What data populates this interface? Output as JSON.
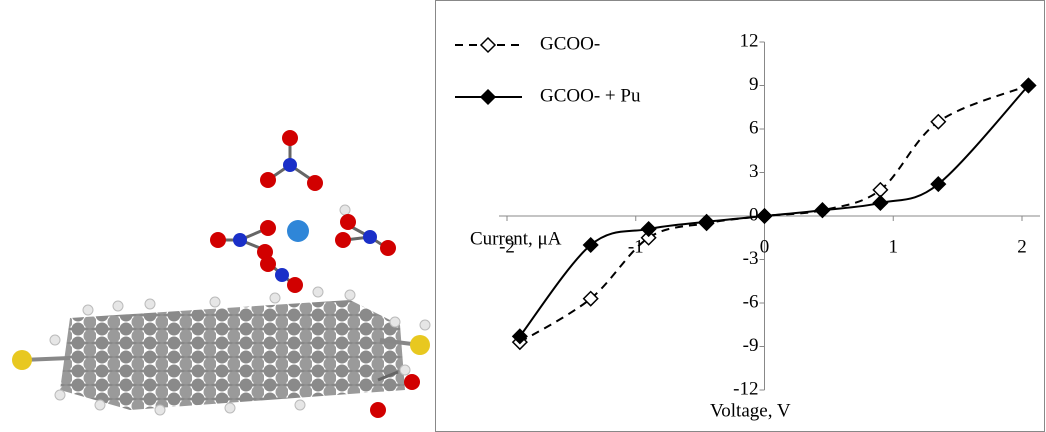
{
  "chart_data": {
    "type": "line",
    "x_label": "Voltage, V",
    "y_label": "Current, μA",
    "x": [
      -1.9,
      -1.35,
      -0.9,
      -0.45,
      0,
      0.45,
      0.9,
      1.35,
      2.05
    ],
    "series": [
      {
        "name": "GCOO-",
        "color": "#000000",
        "dashed": true,
        "marker": "open-diamond",
        "values": [
          -8.7,
          -5.7,
          -1.5,
          -0.5,
          0,
          0.4,
          1.8,
          6.5,
          9
        ]
      },
      {
        "name": "GCOO- + Pu",
        "color": "#000000",
        "dashed": false,
        "marker": "filled-diamond",
        "values": [
          -8.3,
          -2,
          -0.9,
          -0.4,
          0,
          0.4,
          0.9,
          2.2,
          9
        ]
      }
    ],
    "xlim": [
      -2,
      2
    ],
    "xticks": [
      -2,
      -1,
      0,
      1,
      2
    ],
    "ylim": [
      -12,
      12
    ],
    "yticks": [
      -12,
      -9,
      -6,
      -3,
      0,
      3,
      6,
      9,
      12
    ],
    "legend": "top-left"
  }
}
